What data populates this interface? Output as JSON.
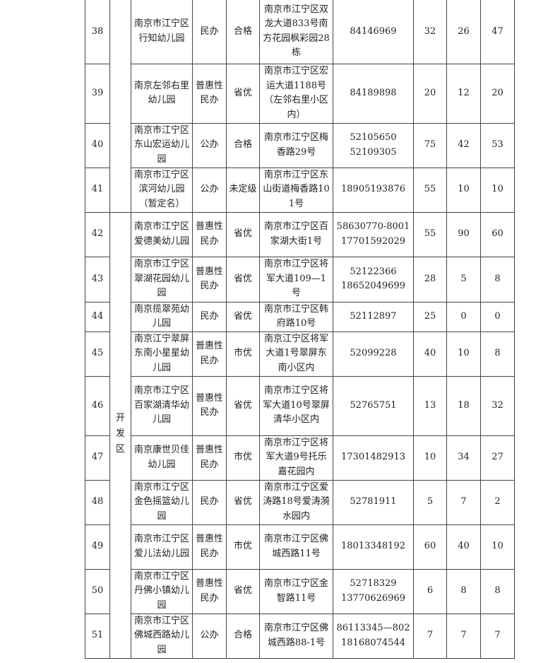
{
  "region": "开发区",
  "rows": [
    {
      "no": "38",
      "name": "南京市江宁区行知幼儿园",
      "type": "民办",
      "grade": "合格",
      "address": "南京市江宁区双龙大道833号南方花园枫彩园28栋",
      "phone": "84146969",
      "a": "32",
      "b": "26",
      "c": "47"
    },
    {
      "no": "39",
      "name": "南京左邻右里幼儿园",
      "type": "普惠性民办",
      "grade": "省优",
      "address": "南京市江宁区宏运大道1188号（左邻右里小区内）",
      "phone": "84189898",
      "a": "20",
      "b": "12",
      "c": "20"
    },
    {
      "no": "40",
      "name": "南京市江宁区东山宏运幼儿园",
      "type": "公办",
      "grade": "合格",
      "address": "南京市江宁区梅香路29号",
      "phone": "52105650 52109305",
      "a": "75",
      "b": "42",
      "c": "53"
    },
    {
      "no": "41",
      "name": "南京市江宁区滨河幼儿园（暂定名）",
      "type": "公办",
      "grade": "未定级",
      "address": "南京市江宁区东山街道梅香路101号",
      "phone": "18905193876",
      "a": "55",
      "b": "10",
      "c": "10"
    },
    {
      "no": "42",
      "name": "南京市江宁区爱德美幼儿园",
      "type": "普惠性民办",
      "grade": "省优",
      "address": "南京市江宁区百家湖大街1号",
      "phone": "58630770-8001 17701592029",
      "a": "55",
      "b": "90",
      "c": "60"
    },
    {
      "no": "43",
      "name": "南京市江宁区翠湖花园幼儿园",
      "type": "普惠性民办",
      "grade": "省优",
      "address": "南京市江宁区将军大道109—1号",
      "phone": "52122366 18652049699",
      "a": "28",
      "b": "5",
      "c": "8"
    },
    {
      "no": "44",
      "name": "南京揽翠苑幼儿园",
      "type": "民办",
      "grade": "省优",
      "address": "南京市江宁区韩府路10号",
      "phone": "52112897",
      "a": "25",
      "b": "0",
      "c": "0"
    },
    {
      "no": "45",
      "name": "南京江宁翠屏东南小星星幼儿园",
      "type": "普惠性民办",
      "grade": "市优",
      "address": "南京江宁区将军大道1号翠屏东南小区内",
      "phone": "52099228",
      "a": "40",
      "b": "10",
      "c": "8"
    },
    {
      "no": "46",
      "name": "南京市江宁区百家湖清华幼儿园",
      "type": "普惠性民办",
      "grade": "省优",
      "address": "南京市江宁区将军大道10号翠屏清华小区内",
      "phone": "52765751",
      "a": "13",
      "b": "18",
      "c": "32"
    },
    {
      "no": "47",
      "name": "南京康世贝佳幼儿园",
      "type": "普惠性民办",
      "grade": "市优",
      "address": "南京市江宁区将军大道9号托乐嘉花园内",
      "phone": "17301482913",
      "a": "10",
      "b": "34",
      "c": "27"
    },
    {
      "no": "48",
      "name": "南京市江宁区金色摇篮幼儿园",
      "type": "民办",
      "grade": "省优",
      "address": "南京市江宁区爱涛路18号爱涛漪水园内",
      "phone": "52781911",
      "a": "5",
      "b": "7",
      "c": "2"
    },
    {
      "no": "49",
      "name": "南京市江宁区爱儿法幼儿园",
      "type": "普惠性民办",
      "grade": "市优",
      "address": "南京市江宁区佛城西路11号",
      "phone": "18013348192",
      "a": "60",
      "b": "40",
      "c": "10"
    },
    {
      "no": "50",
      "name": "南京市江宁区丹佛小镇幼儿园",
      "type": "普惠性民办",
      "grade": "省优",
      "address": "南京市江宁区金智路11号",
      "phone": "52718329 13770626969",
      "a": "6",
      "b": "8",
      "c": "8"
    },
    {
      "no": "51",
      "name": "南京市江宁区佛城西路幼儿园",
      "type": "公办",
      "grade": "合格",
      "address": "南京市江宁区佛城西路88-1号",
      "phone": "86113345—802 18168074544",
      "a": "7",
      "b": "7",
      "c": "7"
    }
  ]
}
